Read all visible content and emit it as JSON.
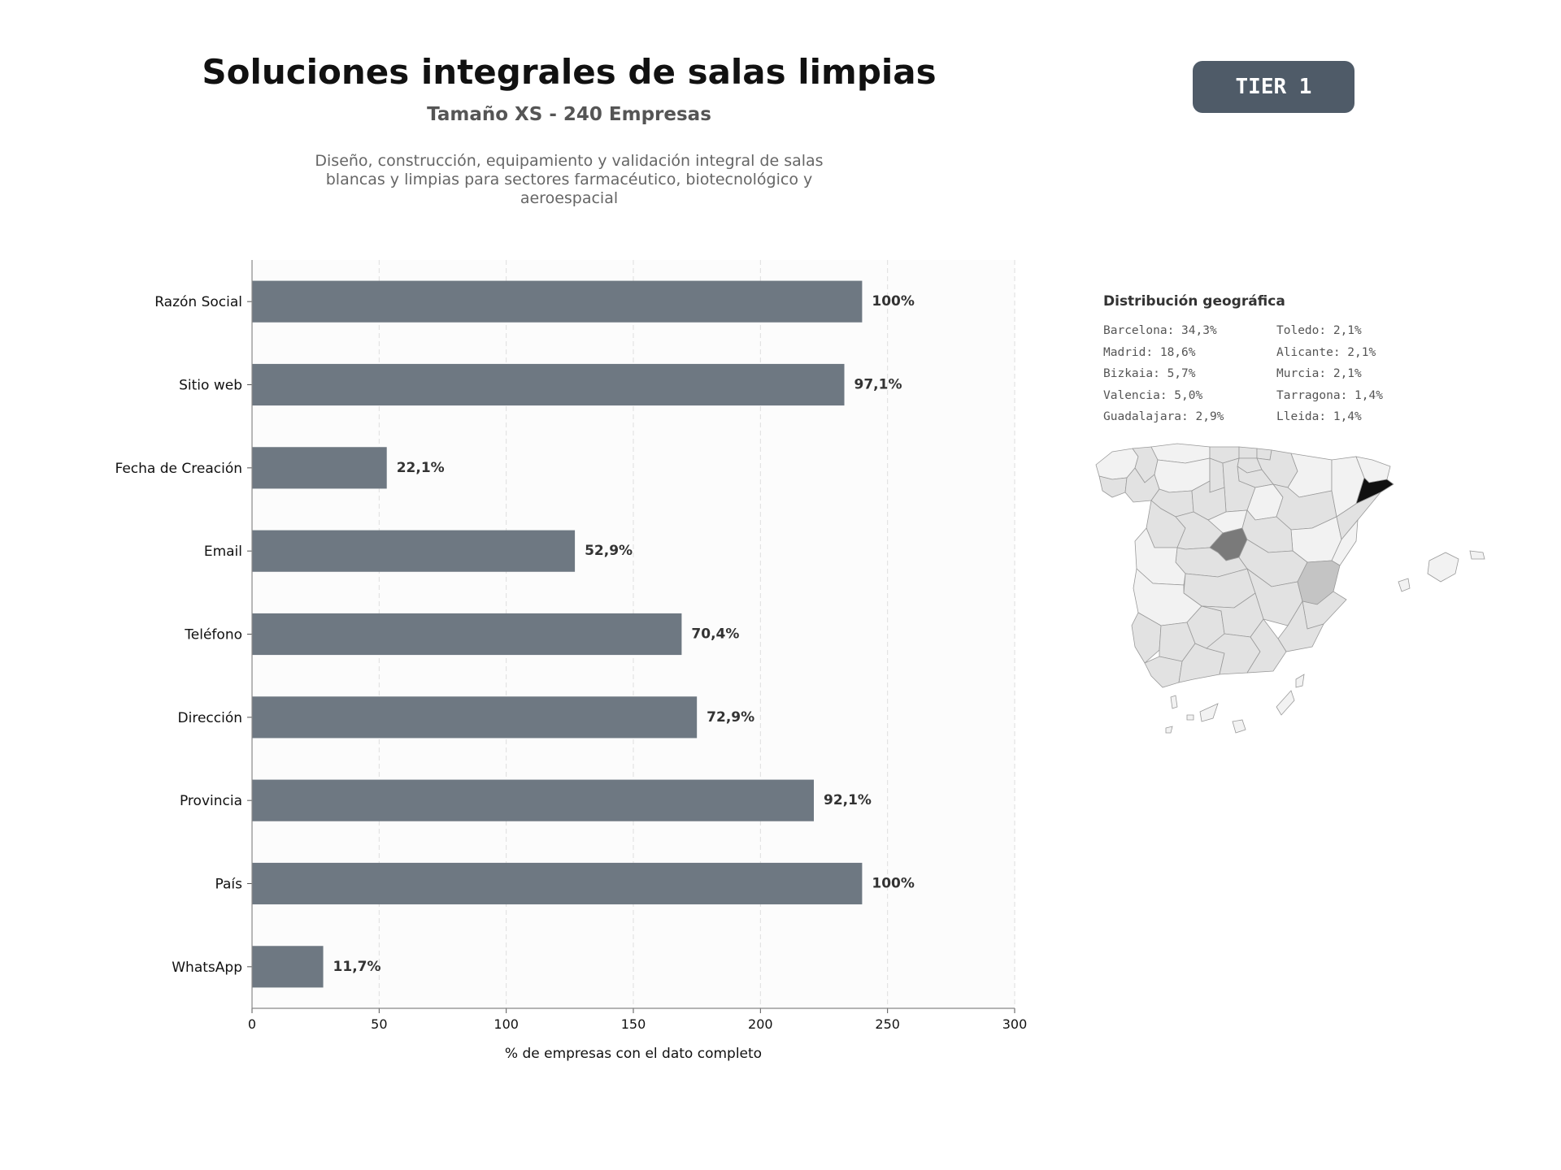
{
  "header": {
    "title": "Soluciones integrales de salas limpias",
    "subtitle": "Tamaño XS - 240 Empresas",
    "description": "Diseño, construcción, equipamiento y validación integral de salas blancas y limpias para sectores farmacéutico, biotecnológico y aeroespacial",
    "tier_label": "TIER 1"
  },
  "chart_data": {
    "type": "bar",
    "orientation": "horizontal",
    "categories": [
      "Razón Social",
      "Sitio web",
      "Fecha de Creación",
      "Email",
      "Teléfono",
      "Dirección",
      "Provincia",
      "País",
      "WhatsApp"
    ],
    "values": [
      240,
      233,
      53,
      127,
      169,
      175,
      221,
      240,
      28
    ],
    "data_labels": [
      "100%",
      "97,1%",
      "22,1%",
      "52,9%",
      "70,4%",
      "72,9%",
      "92,1%",
      "100%",
      "11,7%"
    ],
    "xlabel": "% de empresas con el dato completo",
    "xlim": [
      0,
      300
    ],
    "xticks": [
      0,
      50,
      100,
      150,
      200,
      250,
      300
    ],
    "grid": "vertical-dashed",
    "bar_color": "#6e7882"
  },
  "geo": {
    "title": "Distribución geográfica",
    "items": [
      "Barcelona: 34,3%",
      "Toledo: 2,1%",
      "Madrid: 18,6%",
      "Alicante: 2,1%",
      "Bizkaia: 5,7%",
      "Murcia: 2,1%",
      "Valencia: 5,0%",
      "Tarragona: 1,4%",
      "Guadalajara: 2,9%",
      "Lleida: 1,4%"
    ],
    "map_colors": {
      "barcelona": "#111111",
      "madrid": "#7a7a7a",
      "valencia": "#c4c4c4",
      "default": "#e2e2e2",
      "light": "#f2f2f2"
    }
  }
}
